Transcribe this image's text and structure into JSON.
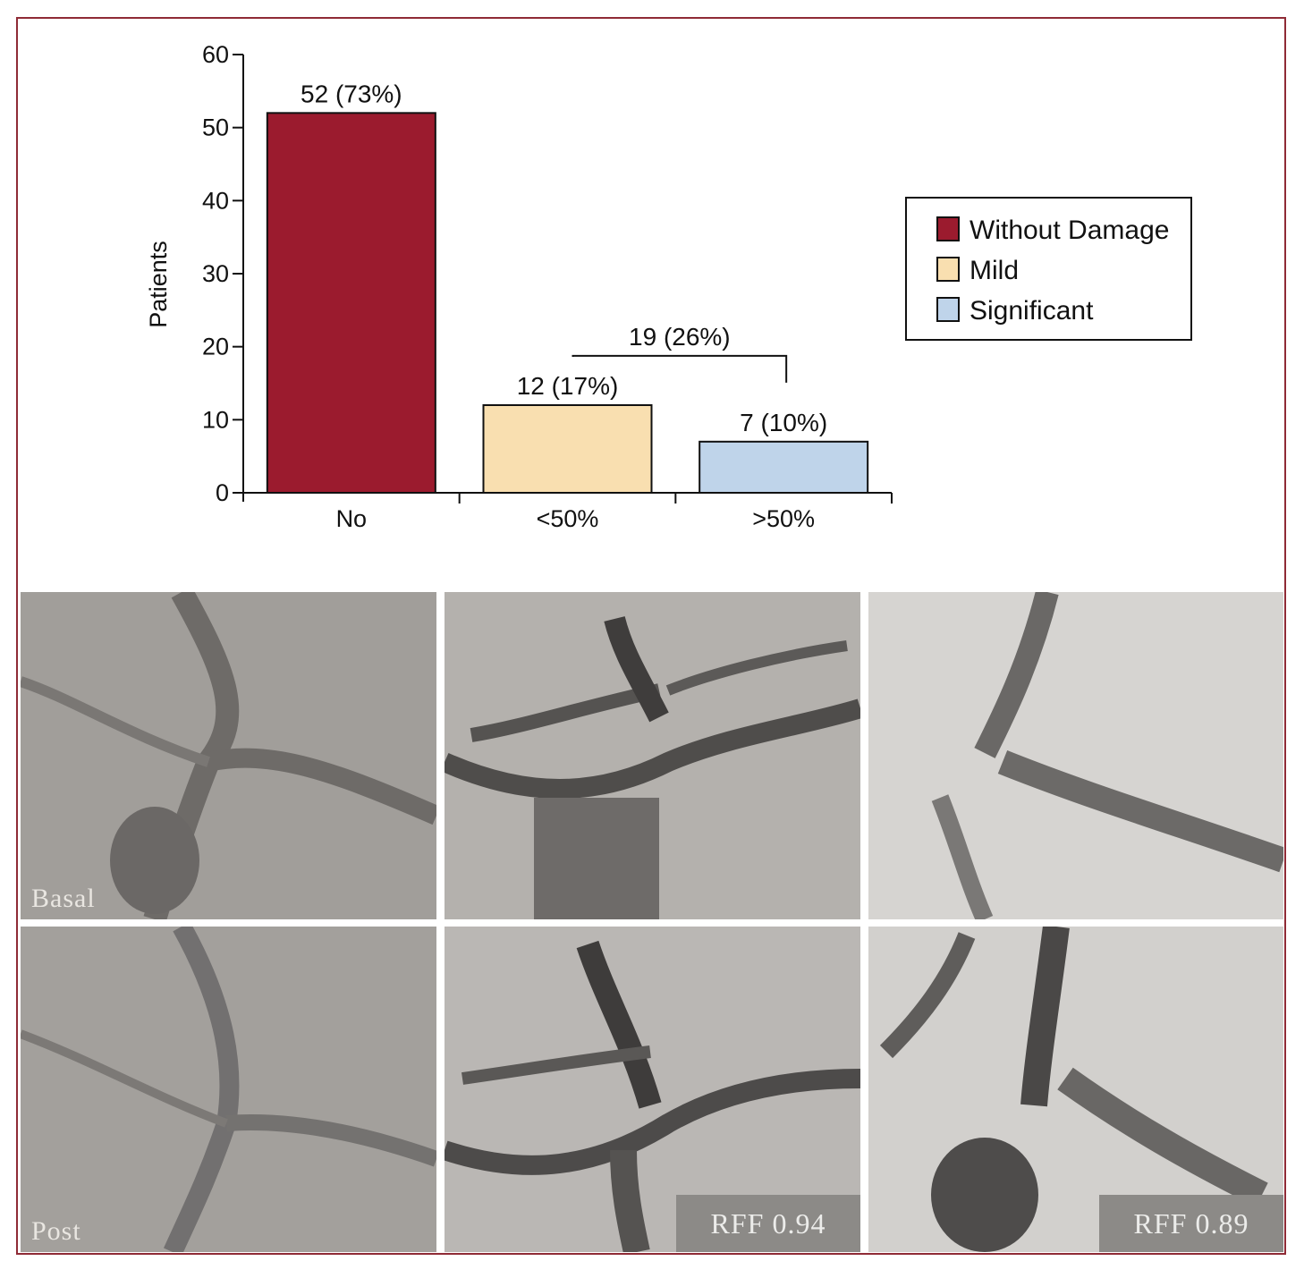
{
  "chart_data": {
    "type": "bar",
    "ylabel": "Patients",
    "xlabel": "",
    "ylim": [
      0,
      60
    ],
    "yticks": [
      0,
      10,
      20,
      30,
      40,
      50,
      60
    ],
    "categories": [
      "No",
      "<50%",
      ">50%"
    ],
    "values": [
      52,
      12,
      7
    ],
    "data_labels": [
      "52 (73%)",
      "12 (17%)",
      "7 (10%)"
    ],
    "colors": [
      "#9b1b2e",
      "#f9dfb0",
      "#bfd4ea"
    ],
    "legend_position": "top-right",
    "legend": [
      {
        "label": "Without Damage",
        "color": "#9b1b2e"
      },
      {
        "label": "Mild",
        "color": "#f9dfb0"
      },
      {
        "label": "Significant",
        "color": "#bfd4ea"
      }
    ],
    "bracket": {
      "label": "19 (26%)",
      "from_category": "<50%",
      "to_category": ">50%",
      "value": 19
    },
    "grid": false
  },
  "panels": {
    "basal_label": "Basal",
    "post_label": "Post",
    "rff_middle": "RFF 0.94",
    "rff_right": "RFF 0.89"
  },
  "colors": {
    "frame": "#8f2b36",
    "panel_background": "#9d9a96"
  }
}
